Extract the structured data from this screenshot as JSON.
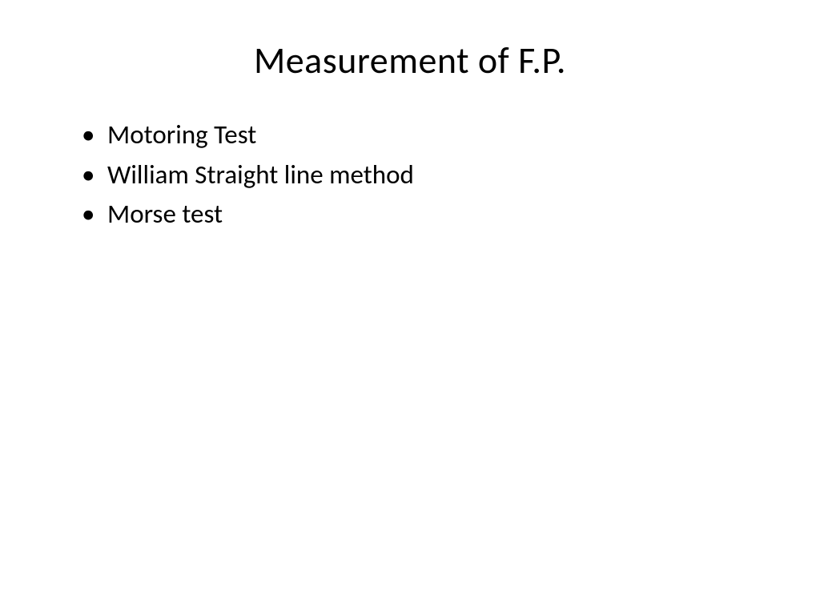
{
  "slide": {
    "title": "Measurement of F.P.",
    "bullets": [
      "Motoring Test",
      "William Straight line method",
      "Morse test"
    ],
    "styling": {
      "background_color": "#ffffff",
      "text_color": "#000000",
      "title_fontsize": 46,
      "body_fontsize": 33,
      "font_family": "Calibri",
      "title_align": "center"
    }
  }
}
